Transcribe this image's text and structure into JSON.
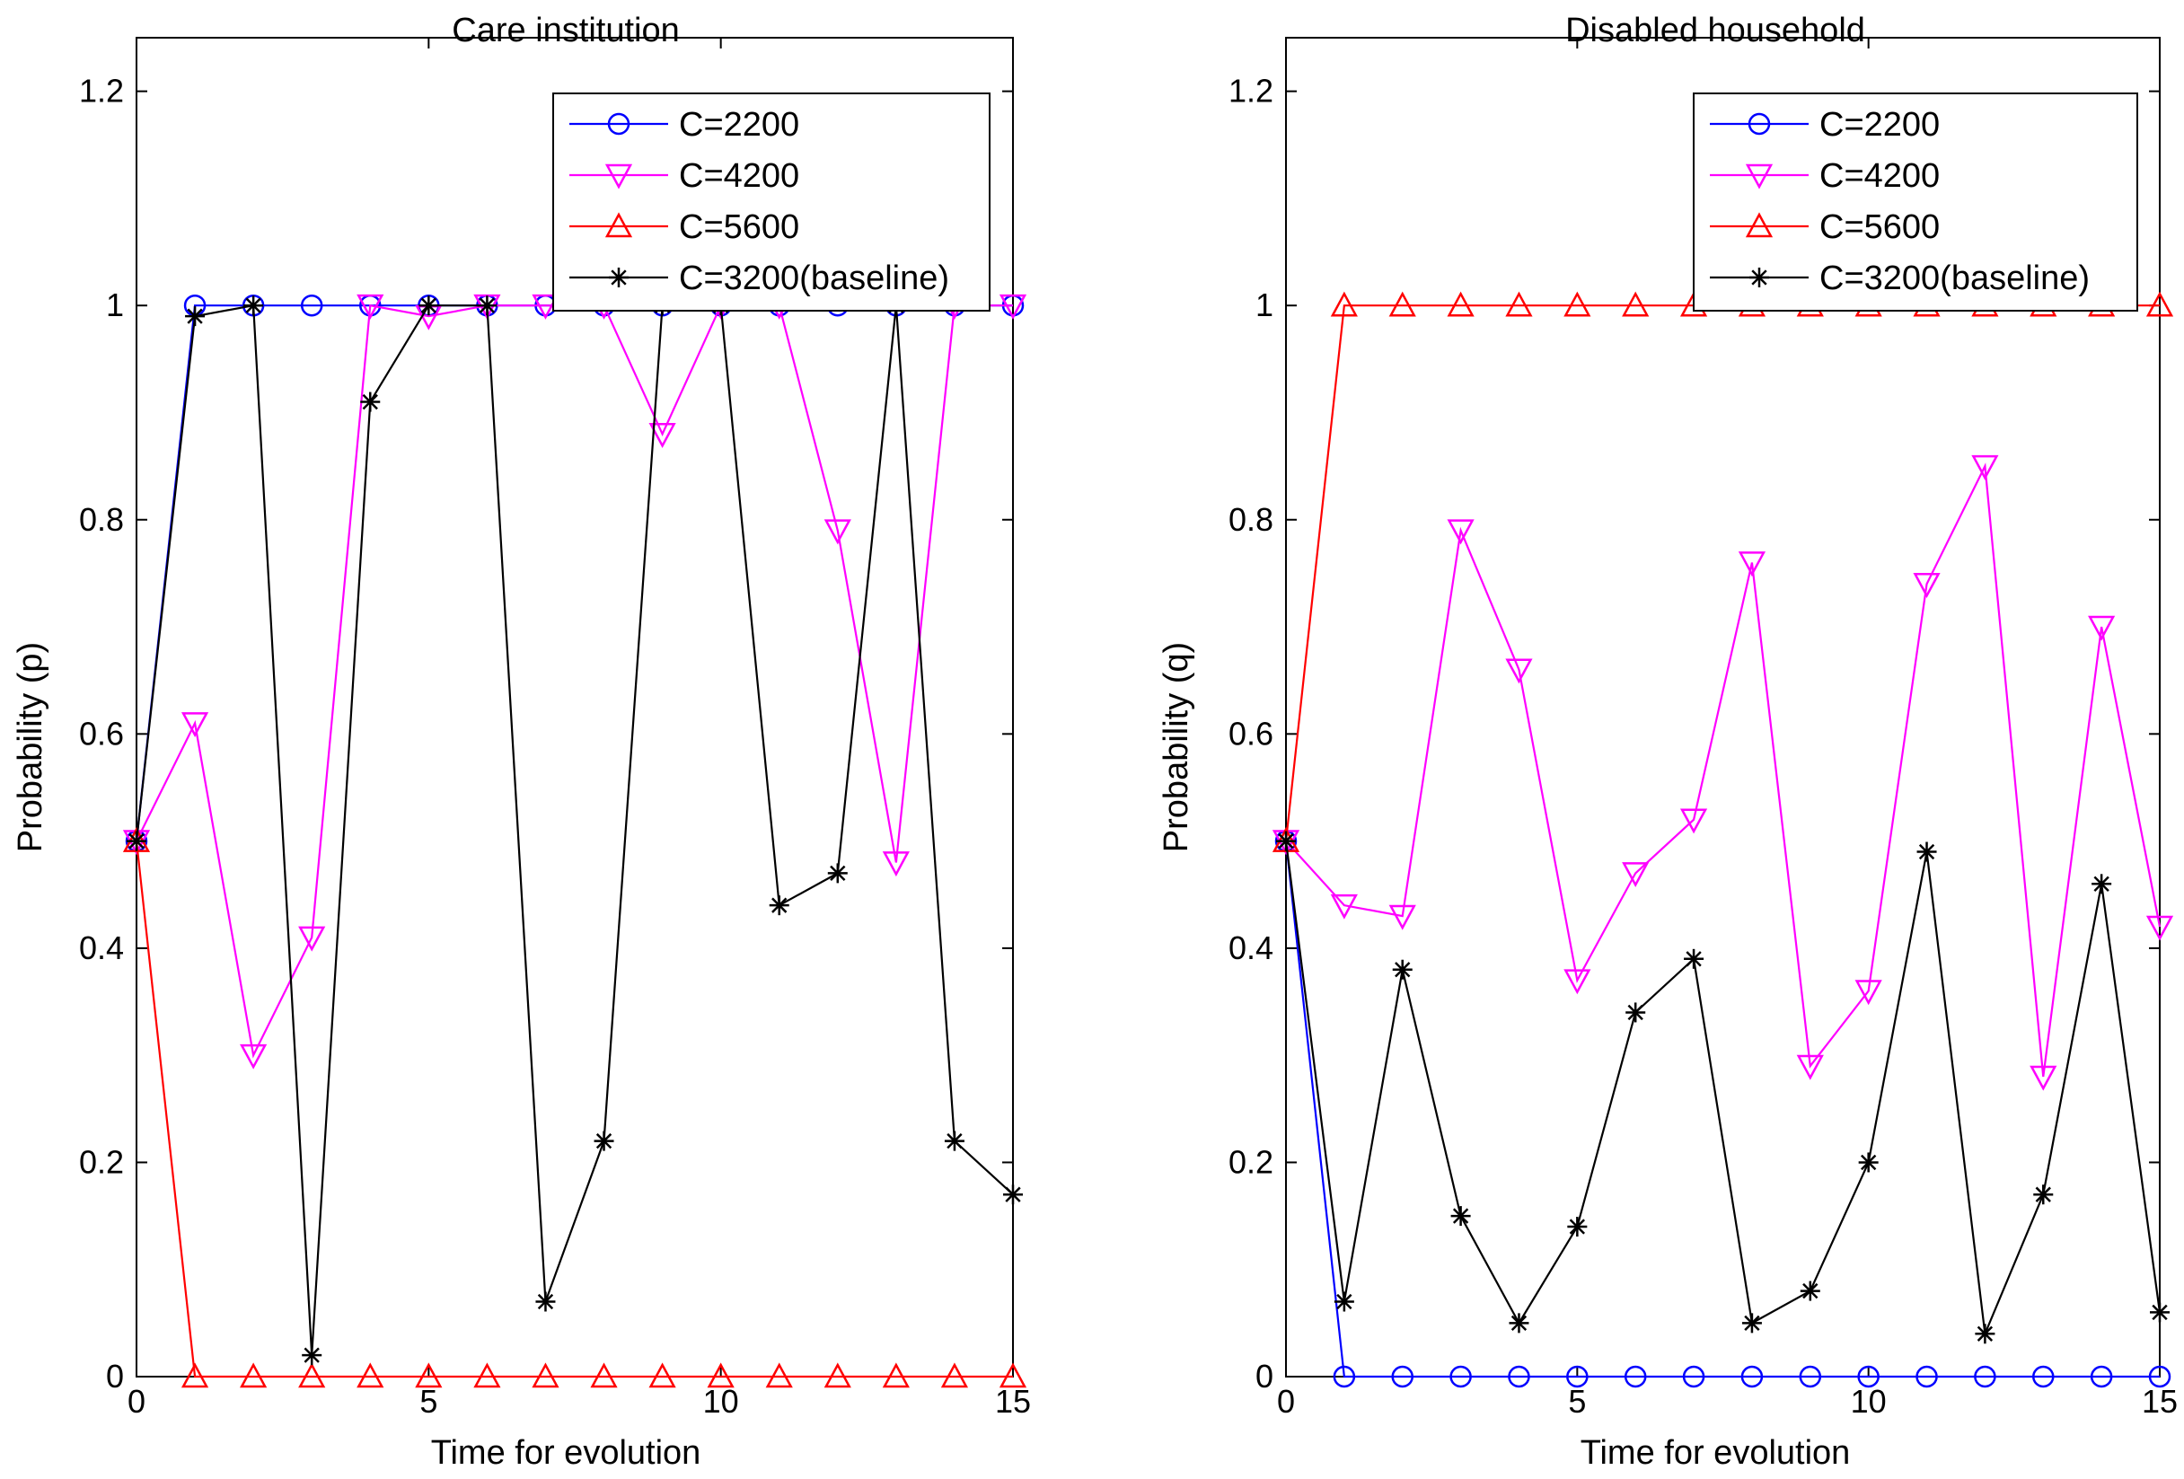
{
  "chart_data": [
    {
      "type": "line",
      "title": "Care institution",
      "xlabel": "Time for evolution",
      "ylabel": "Probability (p)",
      "xlim": [
        0,
        15
      ],
      "ylim": [
        0,
        1.25
      ],
      "xticks": [
        0,
        5,
        10,
        15
      ],
      "yticks": [
        0,
        0.2,
        0.4,
        0.6,
        0.8,
        1,
        1.2
      ],
      "xtick_labels": [
        "0",
        "5",
        "10",
        "15"
      ],
      "ytick_labels": [
        "0",
        "0.2",
        "0.4",
        "0.6",
        "0.8",
        "1",
        "1.2"
      ],
      "grid": false,
      "legend_position": "top-right",
      "x": [
        0,
        1,
        2,
        3,
        4,
        5,
        6,
        7,
        8,
        9,
        10,
        11,
        12,
        13,
        14,
        15
      ],
      "series": [
        {
          "name": "C=2200",
          "color": "#0000ff",
          "marker": "circle",
          "values": [
            0.5,
            1,
            1,
            1,
            1,
            1,
            1,
            1,
            1,
            1,
            1,
            1,
            1,
            1,
            1,
            1
          ]
        },
        {
          "name": "C=4200",
          "color": "#ff00ff",
          "marker": "triangle-down",
          "values": [
            0.5,
            0.61,
            0.3,
            0.41,
            1,
            0.99,
            1,
            1,
            1,
            0.88,
            1,
            1,
            0.79,
            0.48,
            1,
            1
          ]
        },
        {
          "name": "C=5600",
          "color": "#ff0000",
          "marker": "triangle-up",
          "values": [
            0.5,
            0,
            0,
            0,
            0,
            0,
            0,
            0,
            0,
            0,
            0,
            0,
            0,
            0,
            0,
            0
          ]
        },
        {
          "name": "C=3200(baseline)",
          "color": "#000000",
          "marker": "star",
          "values": [
            0.5,
            0.99,
            1,
            0.02,
            0.91,
            1,
            1,
            0.07,
            0.22,
            1,
            1,
            0.44,
            0.47,
            1,
            0.22,
            0.17
          ]
        }
      ]
    },
    {
      "type": "line",
      "title": "Disabled household",
      "xlabel": "Time for evolution",
      "ylabel": "Probability (q)",
      "xlim": [
        0,
        15
      ],
      "ylim": [
        0,
        1.25
      ],
      "xticks": [
        0,
        5,
        10,
        15
      ],
      "yticks": [
        0,
        0.2,
        0.4,
        0.6,
        0.8,
        1,
        1.2
      ],
      "xtick_labels": [
        "0",
        "5",
        "10",
        "15"
      ],
      "ytick_labels": [
        "0",
        "0.2",
        "0.4",
        "0.6",
        "0.8",
        "1",
        "1.2"
      ],
      "grid": false,
      "legend_position": "top-right",
      "x": [
        0,
        1,
        2,
        3,
        4,
        5,
        6,
        7,
        8,
        9,
        10,
        11,
        12,
        13,
        14,
        15
      ],
      "series": [
        {
          "name": "C=2200",
          "color": "#0000ff",
          "marker": "circle",
          "values": [
            0.5,
            0,
            0,
            0,
            0,
            0,
            0,
            0,
            0,
            0,
            0,
            0,
            0,
            0,
            0,
            0
          ]
        },
        {
          "name": "C=4200",
          "color": "#ff00ff",
          "marker": "triangle-down",
          "values": [
            0.5,
            0.44,
            0.43,
            0.79,
            0.66,
            0.37,
            0.47,
            0.52,
            0.76,
            0.29,
            0.36,
            0.74,
            0.85,
            0.28,
            0.7,
            0.42
          ]
        },
        {
          "name": "C=5600",
          "color": "#ff0000",
          "marker": "triangle-up",
          "values": [
            0.5,
            1,
            1,
            1,
            1,
            1,
            1,
            1,
            1,
            1,
            1,
            1,
            1,
            1,
            1,
            1
          ]
        },
        {
          "name": "C=3200(baseline)",
          "color": "#000000",
          "marker": "star",
          "values": [
            0.5,
            0.07,
            0.38,
            0.15,
            0.05,
            0.14,
            0.34,
            0.39,
            0.05,
            0.08,
            0.2,
            0.49,
            0.04,
            0.17,
            0.46,
            0.06
          ]
        }
      ]
    }
  ]
}
